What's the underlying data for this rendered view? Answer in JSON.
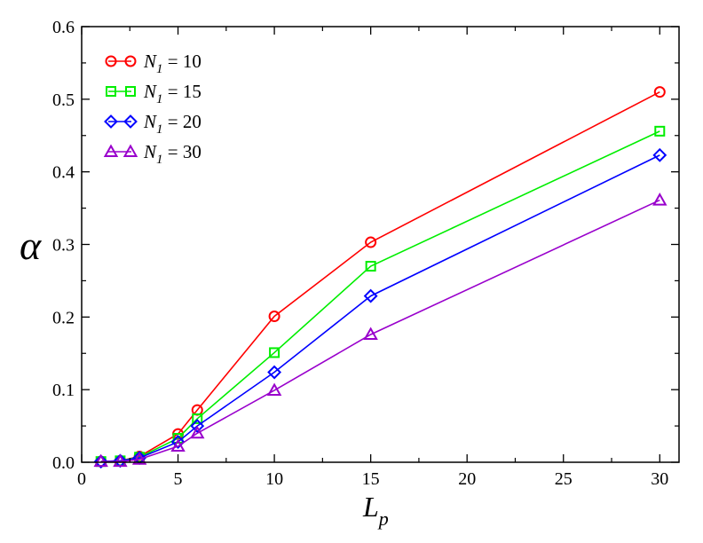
{
  "chart_data": {
    "type": "line",
    "xlabel": "L",
    "xlabel_sub": "p",
    "ylabel": "α",
    "xlim": [
      0,
      31
    ],
    "ylim": [
      0,
      0.6
    ],
    "xticks": [
      0,
      5,
      10,
      15,
      20,
      25,
      30
    ],
    "xtick_labels": [
      "0",
      "5",
      "10",
      "15",
      "20",
      "25",
      "30"
    ],
    "yticks": [
      0,
      0.1,
      0.2,
      0.3,
      0.4,
      0.5,
      0.6
    ],
    "ytick_labels": [
      "0.0",
      "0.1",
      "0.2",
      "0.3",
      "0.4",
      "0.5",
      "0.6"
    ],
    "grid": false,
    "legend_position": "top-left",
    "series": [
      {
        "name": "N1 = 10",
        "legend_var": "N",
        "legend_sub": "1",
        "legend_rest": " = 10",
        "color": "#ff0000",
        "marker": "circle",
        "x": [
          1,
          2,
          3,
          5,
          6,
          10,
          15,
          30
        ],
        "y": [
          0.001,
          0.002,
          0.008,
          0.039,
          0.072,
          0.201,
          0.303,
          0.51
        ]
      },
      {
        "name": "N1 = 15",
        "legend_var": "N",
        "legend_sub": "1",
        "legend_rest": " = 15",
        "color": "#00ee00",
        "marker": "square",
        "x": [
          1,
          2,
          3,
          5,
          6,
          10,
          15,
          30
        ],
        "y": [
          0.001,
          0.002,
          0.007,
          0.033,
          0.06,
          0.151,
          0.27,
          0.456
        ]
      },
      {
        "name": "N1 = 20",
        "legend_var": "N",
        "legend_sub": "1",
        "legend_rest": " = 20",
        "color": "#0000ff",
        "marker": "diamond",
        "x": [
          1,
          2,
          3,
          5,
          6,
          10,
          15,
          30
        ],
        "y": [
          0.001,
          0.002,
          0.006,
          0.028,
          0.05,
          0.124,
          0.229,
          0.423
        ]
      },
      {
        "name": "N1 = 30",
        "legend_var": "N",
        "legend_sub": "1",
        "legend_rest": " = 30",
        "color": "#9900cc",
        "marker": "triangle",
        "x": [
          1,
          2,
          3,
          5,
          6,
          10,
          15,
          30
        ],
        "y": [
          0.001,
          0.001,
          0.004,
          0.022,
          0.04,
          0.099,
          0.176,
          0.361
        ]
      }
    ]
  }
}
